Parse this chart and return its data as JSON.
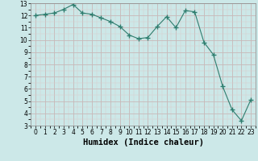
{
  "x": [
    0,
    1,
    2,
    3,
    4,
    5,
    6,
    7,
    8,
    9,
    10,
    11,
    12,
    13,
    14,
    15,
    16,
    17,
    18,
    19,
    20,
    21,
    22,
    23
  ],
  "y": [
    12.0,
    12.1,
    12.2,
    12.5,
    12.9,
    12.2,
    12.1,
    11.8,
    11.5,
    11.1,
    10.4,
    10.1,
    10.2,
    11.1,
    11.9,
    11.0,
    12.4,
    12.3,
    9.8,
    8.8,
    6.2,
    4.3,
    3.4,
    5.1
  ],
  "line_color": "#2e7d6e",
  "marker": "+",
  "marker_size": 4,
  "bg_color": "#cce8e8",
  "grid_major_color": "#c8b8b8",
  "grid_minor_color": "#dccaca",
  "xlabel": "Humidex (Indice chaleur)",
  "xlim": [
    -0.5,
    23.5
  ],
  "ylim": [
    3,
    13
  ],
  "yticks": [
    3,
    4,
    5,
    6,
    7,
    8,
    9,
    10,
    11,
    12,
    13
  ],
  "xticks": [
    0,
    1,
    2,
    3,
    4,
    5,
    6,
    7,
    8,
    9,
    10,
    11,
    12,
    13,
    14,
    15,
    16,
    17,
    18,
    19,
    20,
    21,
    22,
    23
  ],
  "tick_fontsize": 5.5,
  "xlabel_fontsize": 7.5,
  "xlabel_bold": true
}
